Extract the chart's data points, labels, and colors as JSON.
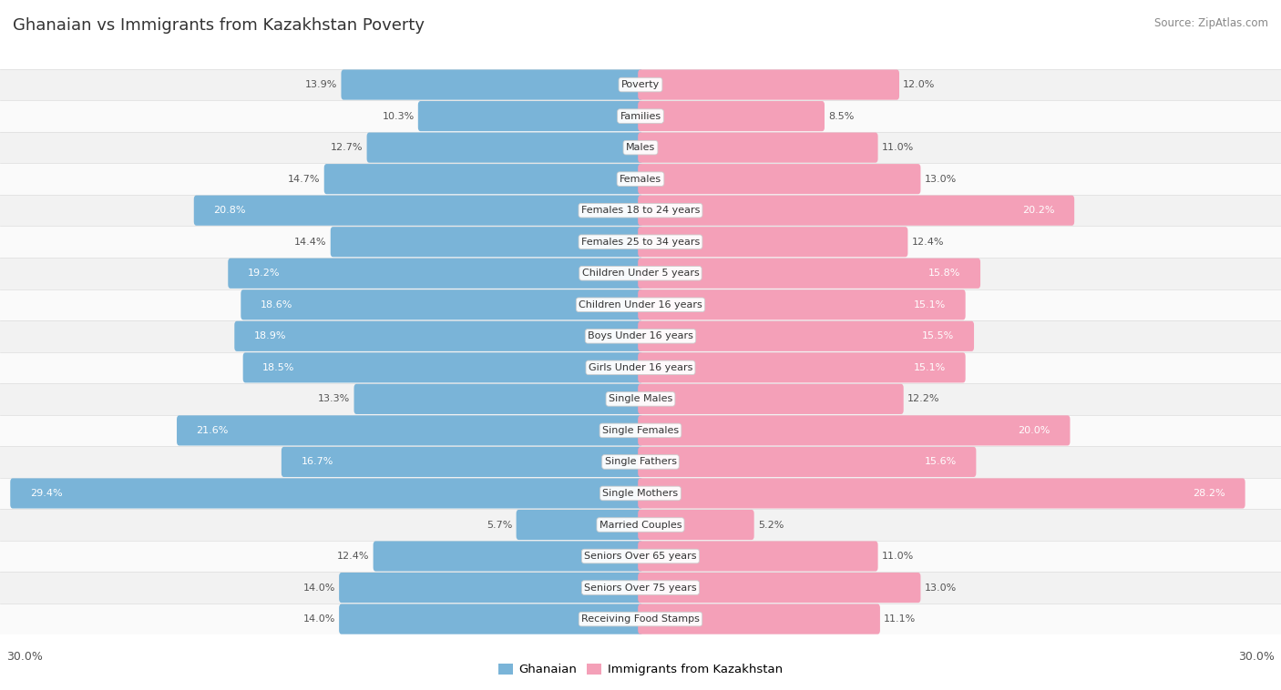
{
  "title": "Ghanaian vs Immigrants from Kazakhstan Poverty",
  "source": "Source: ZipAtlas.com",
  "categories": [
    "Poverty",
    "Families",
    "Males",
    "Females",
    "Females 18 to 24 years",
    "Females 25 to 34 years",
    "Children Under 5 years",
    "Children Under 16 years",
    "Boys Under 16 years",
    "Girls Under 16 years",
    "Single Males",
    "Single Females",
    "Single Fathers",
    "Single Mothers",
    "Married Couples",
    "Seniors Over 65 years",
    "Seniors Over 75 years",
    "Receiving Food Stamps"
  ],
  "ghanaian": [
    13.9,
    10.3,
    12.7,
    14.7,
    20.8,
    14.4,
    19.2,
    18.6,
    18.9,
    18.5,
    13.3,
    21.6,
    16.7,
    29.4,
    5.7,
    12.4,
    14.0,
    14.0
  ],
  "kazakhstan": [
    12.0,
    8.5,
    11.0,
    13.0,
    20.2,
    12.4,
    15.8,
    15.1,
    15.5,
    15.1,
    12.2,
    20.0,
    15.6,
    28.2,
    5.2,
    11.0,
    13.0,
    11.1
  ],
  "bar_color_ghanaian": "#7ab4d8",
  "bar_color_kazakhstan": "#f4a0b8",
  "row_color_even": "#f2f2f2",
  "row_color_odd": "#fafafa",
  "max_val": 30.0,
  "axis_label_left": "30.0%",
  "axis_label_right": "30.0%",
  "legend_ghanaian": "Ghanaian",
  "legend_kazakhstan": "Immigrants from Kazakhstan",
  "white_text_threshold_gh": 16.0,
  "white_text_threshold_kz": 15.0
}
